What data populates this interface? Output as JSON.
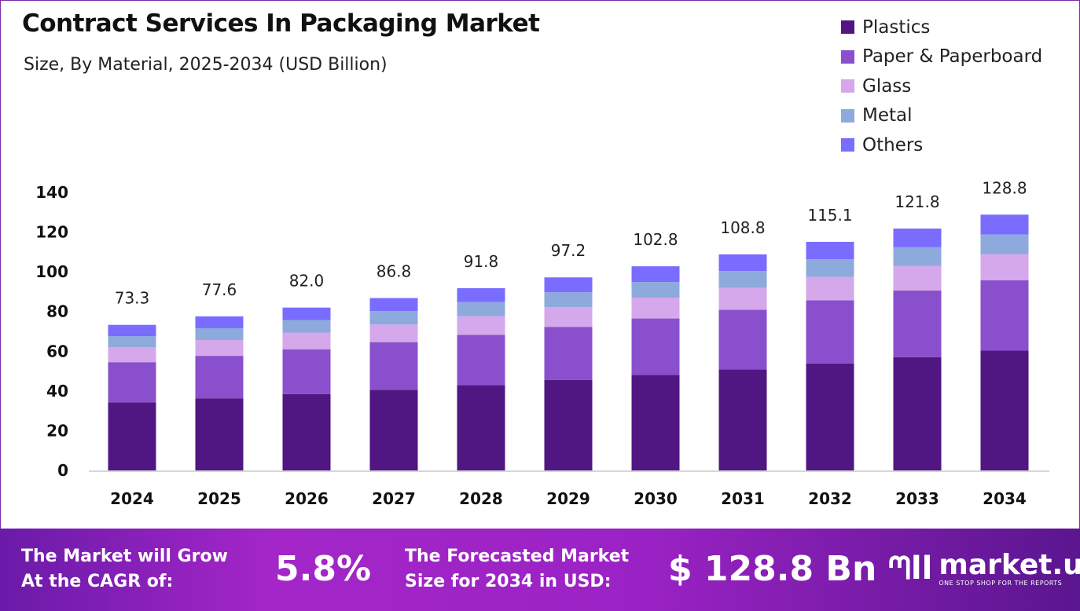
{
  "chart_data": {
    "type": "bar",
    "stacked": true,
    "title": "Contract Services In Packaging Market",
    "subtitle": "Size, By Material, 2025-2034 (USD Billion)",
    "xlabel": "",
    "ylabel": "",
    "ylim": [
      0,
      140
    ],
    "yticks": [
      0,
      20,
      40,
      60,
      80,
      100,
      120,
      140
    ],
    "grid": false,
    "legend_position": "top-right",
    "categories": [
      "2024",
      "2025",
      "2026",
      "2027",
      "2028",
      "2029",
      "2030",
      "2031",
      "2032",
      "2033",
      "2034"
    ],
    "totals": [
      "73.3",
      "77.6",
      "82.0",
      "86.8",
      "91.8",
      "97.2",
      "102.8",
      "108.8",
      "115.1",
      "121.8",
      "128.8"
    ],
    "series": [
      {
        "name": "Plastics",
        "color": "#501682",
        "values": [
          34.3,
          36.3,
          38.4,
          40.6,
          43.0,
          45.5,
          48.1,
          50.9,
          53.9,
          57.0,
          60.3
        ]
      },
      {
        "name": "Paper & Paperboard",
        "color": "#8a4fcc",
        "values": [
          20.2,
          21.4,
          22.6,
          24.0,
          25.3,
          26.8,
          28.4,
          30.0,
          31.8,
          33.6,
          35.5
        ]
      },
      {
        "name": "Glass",
        "color": "#d4a8ea",
        "values": [
          7.5,
          7.9,
          8.4,
          8.9,
          9.4,
          9.9,
          10.5,
          11.1,
          11.7,
          12.4,
          13.1
        ]
      },
      {
        "name": "Metal",
        "color": "#8eaadc",
        "values": [
          5.6,
          6.0,
          6.3,
          6.7,
          7.1,
          7.5,
          7.9,
          8.4,
          8.9,
          9.4,
          9.9
        ]
      },
      {
        "name": "Others",
        "color": "#7a6cff",
        "values": [
          5.7,
          6.0,
          6.3,
          6.6,
          7.0,
          7.5,
          7.9,
          8.4,
          8.8,
          9.4,
          10.0
        ]
      }
    ]
  },
  "footer": {
    "cagr_label_1": "The Market will Grow",
    "cagr_label_2": "At the CAGR of:",
    "cagr_value": "5.8%",
    "forecast_label_1": "The Forecasted Market",
    "forecast_label_2": "Size for 2034 in USD:",
    "forecast_value": "$ 128.8 Bn",
    "logo_name": "market.us",
    "logo_tagline": "ONE STOP SHOP FOR THE REPORTS"
  }
}
